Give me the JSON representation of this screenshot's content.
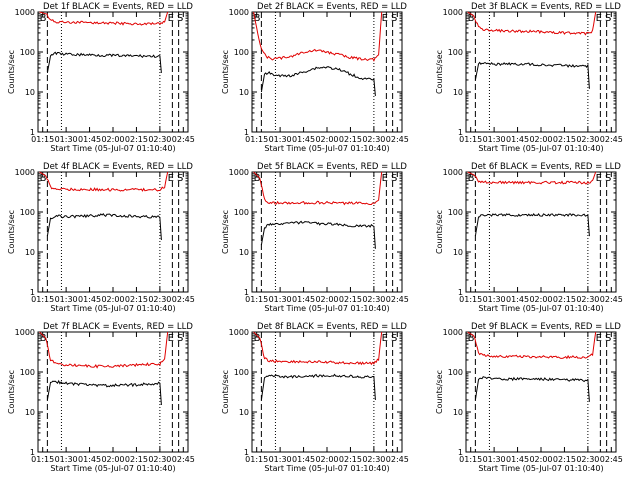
{
  "colors": {
    "events": "#000000",
    "lld": "#e00000",
    "background": "#ffffff"
  },
  "chart_data": [
    {
      "type": "line",
      "title": "Det 1f BLACK = Events, RED = LLD",
      "xlabel": "Start Time (05-Jul-07 01:10:40)",
      "ylabel": "Counts/sec",
      "y_scale": "log",
      "ylim": [
        1,
        1000
      ],
      "y_ticks": [
        "1",
        "10",
        "100",
        "1000"
      ],
      "x_ticks": [
        "01:15",
        "01:30",
        "01:45",
        "02:00",
        "02:15",
        "02:30",
        "02:45"
      ],
      "xlim": [
        "01:12",
        "02:48"
      ],
      "markers": [
        "B",
        "E",
        "S"
      ],
      "series": [
        {
          "color": "#e00000",
          "x": [
            "01:13",
            "01:17",
            "01:20",
            "01:23",
            "01:26",
            "01:30",
            "01:38",
            "01:45",
            "01:53",
            "02:00",
            "02:08",
            "02:15",
            "02:22",
            "02:30",
            "02:33",
            "02:35"
          ],
          "y": [
            1000,
            900,
            650,
            570,
            555,
            550,
            545,
            540,
            535,
            525,
            515,
            505,
            500,
            500,
            560,
            1000
          ]
        },
        {
          "color": "#000000",
          "x": [
            "01:18",
            "01:20",
            "01:23",
            "01:26",
            "01:30",
            "01:38",
            "01:45",
            "01:53",
            "02:00",
            "02:08",
            "02:15",
            "02:22",
            "02:30",
            "02:31"
          ],
          "y": [
            30,
            80,
            95,
            90,
            88,
            86,
            85,
            83,
            82,
            80,
            80,
            79,
            78,
            30
          ]
        }
      ]
    },
    {
      "type": "line",
      "title": "Det 2f BLACK = Events, RED = LLD",
      "xlabel": "Start Time (05-Jul-07 01:10:40)",
      "ylabel": "Counts/sec",
      "y_scale": "log",
      "ylim": [
        1,
        1000
      ],
      "y_ticks": [
        "1",
        "10",
        "100",
        "1000"
      ],
      "x_ticks": [
        "01:15",
        "01:30",
        "01:45",
        "02:00",
        "02:15",
        "02:30",
        "02:45"
      ],
      "xlim": [
        "01:12",
        "02:48"
      ],
      "markers": [
        "B",
        "E",
        "S"
      ],
      "series": [
        {
          "color": "#e00000",
          "x": [
            "01:13",
            "01:15",
            "01:18",
            "01:21",
            "01:25",
            "01:30",
            "01:38",
            "01:45",
            "01:53",
            "02:00",
            "02:08",
            "02:15",
            "02:22",
            "02:30",
            "02:33",
            "02:35"
          ],
          "y": [
            1000,
            400,
            120,
            75,
            68,
            70,
            80,
            100,
            110,
            100,
            85,
            72,
            68,
            65,
            80,
            1000
          ]
        },
        {
          "color": "#000000",
          "x": [
            "01:18",
            "01:20",
            "01:23",
            "01:26",
            "01:30",
            "01:38",
            "01:45",
            "01:53",
            "02:00",
            "02:08",
            "02:15",
            "02:22",
            "02:30",
            "02:31"
          ],
          "y": [
            10,
            28,
            30,
            27,
            25,
            26,
            32,
            40,
            42,
            36,
            28,
            22,
            20,
            8
          ]
        }
      ]
    },
    {
      "type": "line",
      "title": "Det 3f BLACK = Events, RED = LLD",
      "xlabel": "Start Time (05-Jul-07 01:10:40)",
      "ylabel": "Counts/sec",
      "y_scale": "log",
      "ylim": [
        1,
        1000
      ],
      "y_ticks": [
        "1",
        "10",
        "100",
        "1000"
      ],
      "x_ticks": [
        "01:15",
        "01:30",
        "01:45",
        "02:00",
        "02:15",
        "02:30",
        "02:45"
      ],
      "xlim": [
        "01:12",
        "02:48"
      ],
      "markers": [
        "B",
        "E",
        "S"
      ],
      "series": [
        {
          "color": "#e00000",
          "x": [
            "01:13",
            "01:17",
            "01:20",
            "01:23",
            "01:26",
            "01:30",
            "01:38",
            "01:45",
            "01:53",
            "02:00",
            "02:08",
            "02:15",
            "02:22",
            "02:30",
            "02:33",
            "02:35"
          ],
          "y": [
            1000,
            800,
            420,
            360,
            345,
            340,
            335,
            330,
            325,
            320,
            310,
            300,
            295,
            290,
            330,
            1000
          ]
        },
        {
          "color": "#000000",
          "x": [
            "01:18",
            "01:20",
            "01:23",
            "01:26",
            "01:30",
            "01:38",
            "01:45",
            "01:53",
            "02:00",
            "02:08",
            "02:15",
            "02:22",
            "02:30",
            "02:31"
          ],
          "y": [
            20,
            50,
            55,
            52,
            50,
            50,
            50,
            49,
            48,
            47,
            46,
            45,
            44,
            12
          ]
        }
      ]
    },
    {
      "type": "line",
      "title": "Det 4f BLACK = Events, RED = LLD",
      "xlabel": "Start Time (05-Jul-07 01:10:40)",
      "ylabel": "Counts/sec",
      "y_scale": "log",
      "ylim": [
        1,
        1000
      ],
      "y_ticks": [
        "1",
        "10",
        "100",
        "1000"
      ],
      "x_ticks": [
        "01:15",
        "01:30",
        "01:45",
        "02:00",
        "02:15",
        "02:30",
        "02:45"
      ],
      "xlim": [
        "01:12",
        "02:48"
      ],
      "markers": [
        "B",
        "E",
        "S"
      ],
      "series": [
        {
          "color": "#e00000",
          "x": [
            "01:13",
            "01:17",
            "01:20",
            "01:23",
            "01:26",
            "01:30",
            "01:38",
            "01:45",
            "01:53",
            "02:00",
            "02:08",
            "02:15",
            "02:22",
            "02:30",
            "02:33",
            "02:35"
          ],
          "y": [
            1000,
            800,
            420,
            380,
            370,
            370,
            370,
            365,
            365,
            360,
            360,
            360,
            360,
            360,
            420,
            1000
          ]
        },
        {
          "color": "#000000",
          "x": [
            "01:18",
            "01:20",
            "01:23",
            "01:26",
            "01:30",
            "01:38",
            "01:45",
            "01:53",
            "02:00",
            "02:08",
            "02:15",
            "02:22",
            "02:30",
            "02:31"
          ],
          "y": [
            25,
            70,
            80,
            78,
            76,
            78,
            80,
            84,
            82,
            80,
            78,
            76,
            75,
            20
          ]
        }
      ]
    },
    {
      "type": "line",
      "title": "Det 5f BLACK = Events, RED = LLD",
      "xlabel": "Start Time (05-Jul-07 01:10:40)",
      "ylabel": "Counts/sec",
      "y_scale": "log",
      "ylim": [
        1,
        1000
      ],
      "y_ticks": [
        "1",
        "10",
        "100",
        "1000"
      ],
      "x_ticks": [
        "01:15",
        "01:30",
        "01:45",
        "02:00",
        "02:15",
        "02:30",
        "02:45"
      ],
      "xlim": [
        "01:12",
        "02:48"
      ],
      "markers": [
        "B",
        "E",
        "S"
      ],
      "series": [
        {
          "color": "#e00000",
          "x": [
            "01:13",
            "01:17",
            "01:20",
            "01:23",
            "01:26",
            "01:30",
            "01:38",
            "01:45",
            "01:53",
            "02:00",
            "02:08",
            "02:15",
            "02:22",
            "02:30",
            "02:33",
            "02:35"
          ],
          "y": [
            1000,
            700,
            200,
            175,
            170,
            168,
            168,
            170,
            172,
            170,
            168,
            165,
            165,
            165,
            200,
            1000
          ]
        },
        {
          "color": "#000000",
          "x": [
            "01:18",
            "01:20",
            "01:23",
            "01:26",
            "01:30",
            "01:38",
            "01:45",
            "01:53",
            "02:00",
            "02:08",
            "02:15",
            "02:22",
            "02:30",
            "02:31"
          ],
          "y": [
            15,
            40,
            48,
            50,
            50,
            52,
            55,
            52,
            50,
            48,
            46,
            45,
            45,
            12
          ]
        }
      ]
    },
    {
      "type": "line",
      "title": "Det 6f BLACK = Events, RED = LLD",
      "xlabel": "Start Time (05-Jul-07 01:10:40)",
      "ylabel": "Counts/sec",
      "y_scale": "log",
      "ylim": [
        1,
        1000
      ],
      "y_ticks": [
        "1",
        "10",
        "100",
        "1000"
      ],
      "x_ticks": [
        "01:15",
        "01:30",
        "01:45",
        "02:00",
        "02:15",
        "02:30",
        "02:45"
      ],
      "xlim": [
        "01:12",
        "02:48"
      ],
      "markers": [
        "B",
        "E",
        "S"
      ],
      "series": [
        {
          "color": "#e00000",
          "x": [
            "01:13",
            "01:17",
            "01:20",
            "01:23",
            "01:26",
            "01:30",
            "01:38",
            "01:45",
            "01:53",
            "02:00",
            "02:08",
            "02:15",
            "02:22",
            "02:30",
            "02:33",
            "02:35"
          ],
          "y": [
            1000,
            850,
            600,
            560,
            550,
            548,
            545,
            545,
            545,
            545,
            545,
            545,
            545,
            545,
            600,
            1000
          ]
        },
        {
          "color": "#000000",
          "x": [
            "01:18",
            "01:20",
            "01:23",
            "01:26",
            "01:30",
            "01:38",
            "01:45",
            "01:53",
            "02:00",
            "02:08",
            "02:15",
            "02:22",
            "02:30",
            "02:31"
          ],
          "y": [
            25,
            75,
            85,
            85,
            84,
            84,
            84,
            84,
            84,
            84,
            84,
            84,
            84,
            25
          ]
        }
      ]
    },
    {
      "type": "line",
      "title": "Det 7f BLACK = Events, RED = LLD",
      "xlabel": "Start Time (05-Jul-07 01:10:40)",
      "ylabel": "Counts/sec",
      "y_scale": "log",
      "ylim": [
        1,
        1000
      ],
      "y_ticks": [
        "1",
        "10",
        "100",
        "1000"
      ],
      "x_ticks": [
        "01:15",
        "01:30",
        "01:45",
        "02:00",
        "02:15",
        "02:30",
        "02:45"
      ],
      "xlim": [
        "01:12",
        "02:48"
      ],
      "markers": [
        "B",
        "E",
        "S"
      ],
      "series": [
        {
          "color": "#e00000",
          "x": [
            "01:13",
            "01:17",
            "01:20",
            "01:23",
            "01:26",
            "01:30",
            "01:38",
            "01:45",
            "01:53",
            "02:00",
            "02:08",
            "02:15",
            "02:22",
            "02:30",
            "02:33",
            "02:35"
          ],
          "y": [
            1000,
            700,
            200,
            165,
            155,
            150,
            145,
            140,
            138,
            140,
            145,
            150,
            155,
            160,
            200,
            1000
          ]
        },
        {
          "color": "#000000",
          "x": [
            "01:18",
            "01:20",
            "01:23",
            "01:26",
            "01:30",
            "01:38",
            "01:45",
            "01:53",
            "02:00",
            "02:08",
            "02:15",
            "02:22",
            "02:30",
            "02:31"
          ],
          "y": [
            20,
            55,
            58,
            55,
            52,
            50,
            48,
            46,
            46,
            47,
            48,
            50,
            52,
            15
          ]
        }
      ]
    },
    {
      "type": "line",
      "title": "Det 8f BLACK = Events, RED = LLD",
      "xlabel": "Start Time (05-Jul-07 01:10:40)",
      "ylabel": "Counts/sec",
      "y_scale": "log",
      "ylim": [
        1,
        1000
      ],
      "y_ticks": [
        "1",
        "10",
        "100",
        "1000"
      ],
      "x_ticks": [
        "01:15",
        "01:30",
        "01:45",
        "02:00",
        "02:15",
        "02:30",
        "02:45"
      ],
      "xlim": [
        "01:12",
        "02:48"
      ],
      "markers": [
        "B",
        "E",
        "S"
      ],
      "series": [
        {
          "color": "#e00000",
          "x": [
            "01:13",
            "01:17",
            "01:20",
            "01:23",
            "01:26",
            "01:30",
            "01:38",
            "01:45",
            "01:53",
            "02:00",
            "02:08",
            "02:15",
            "02:22",
            "02:30",
            "02:33",
            "02:35"
          ],
          "y": [
            1000,
            700,
            220,
            190,
            185,
            185,
            182,
            180,
            178,
            175,
            170,
            168,
            165,
            165,
            210,
            1000
          ]
        },
        {
          "color": "#000000",
          "x": [
            "01:18",
            "01:20",
            "01:23",
            "01:26",
            "01:30",
            "01:38",
            "01:45",
            "01:53",
            "02:00",
            "02:08",
            "02:15",
            "02:22",
            "02:30",
            "02:31"
          ],
          "y": [
            20,
            72,
            80,
            78,
            76,
            76,
            78,
            80,
            82,
            80,
            78,
            76,
            75,
            20
          ]
        }
      ]
    },
    {
      "type": "line",
      "title": "Det 9f BLACK = Events, RED = LLD",
      "xlabel": "Start Time (05-Jul-07 01:10:40)",
      "ylabel": "Counts/sec",
      "y_scale": "log",
      "ylim": [
        1,
        1000
      ],
      "y_ticks": [
        "1",
        "10",
        "100",
        "1000"
      ],
      "x_ticks": [
        "01:15",
        "01:30",
        "01:45",
        "02:00",
        "02:15",
        "02:30",
        "02:45"
      ],
      "xlim": [
        "01:12",
        "02:48"
      ],
      "markers": [
        "B",
        "E",
        "S"
      ],
      "series": [
        {
          "color": "#e00000",
          "x": [
            "01:13",
            "01:17",
            "01:20",
            "01:23",
            "01:26",
            "01:30",
            "01:38",
            "01:45",
            "01:53",
            "02:00",
            "02:08",
            "02:15",
            "02:22",
            "02:30",
            "02:33",
            "02:35"
          ],
          "y": [
            1000,
            800,
            300,
            265,
            255,
            250,
            245,
            245,
            240,
            240,
            238,
            235,
            235,
            235,
            270,
            1000
          ]
        },
        {
          "color": "#000000",
          "x": [
            "01:18",
            "01:20",
            "01:23",
            "01:26",
            "01:30",
            "01:38",
            "01:45",
            "01:53",
            "02:00",
            "02:08",
            "02:15",
            "02:22",
            "02:30",
            "02:31"
          ],
          "y": [
            20,
            65,
            72,
            70,
            68,
            67,
            67,
            66,
            66,
            65,
            64,
            63,
            62,
            18
          ]
        }
      ]
    }
  ]
}
